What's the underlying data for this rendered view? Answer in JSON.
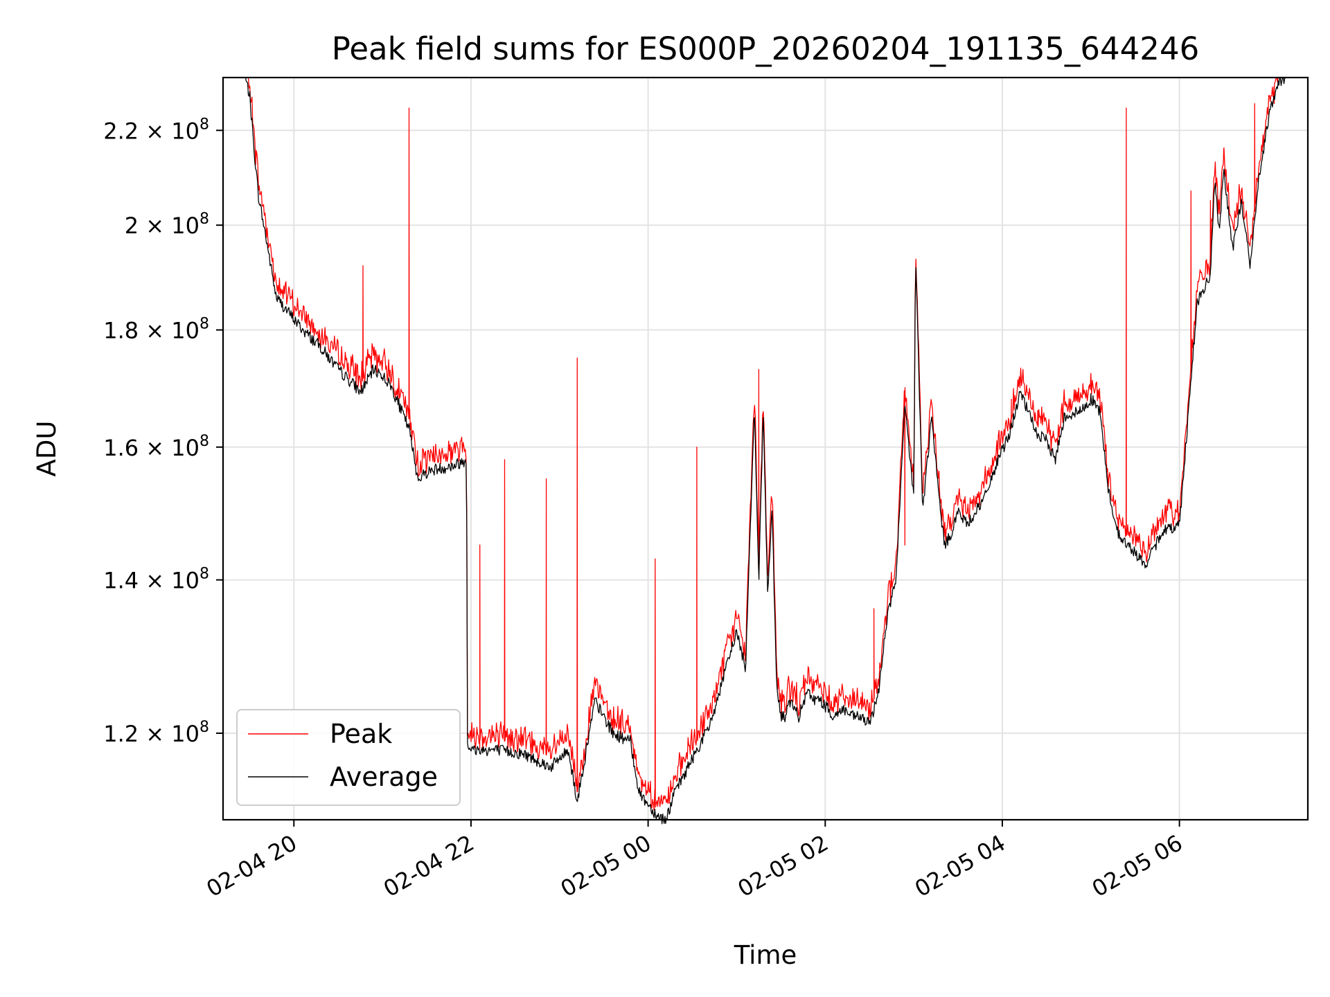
{
  "chart_data": {
    "type": "line",
    "title": "Peak field sums for ES000P_20260204_191135_644246",
    "xlabel": "Time",
    "ylabel": "ADU",
    "yscale": "log",
    "ylim": [
      110000000,
      232000000
    ],
    "xlim_hours": [
      19.2,
      31.45
    ],
    "grid": true,
    "legend_position": "lower-left",
    "x_ticks": [
      {
        "hour": 20,
        "label": "02-04 20"
      },
      {
        "hour": 22,
        "label": "02-04 22"
      },
      {
        "hour": 24,
        "label": "02-05 00"
      },
      {
        "hour": 26,
        "label": "02-05 02"
      },
      {
        "hour": 28,
        "label": "02-05 04"
      },
      {
        "hour": 30,
        "label": "02-05 06"
      }
    ],
    "y_ticks": [
      {
        "value": 120000000,
        "mant": "1.2",
        "exp": "8"
      },
      {
        "value": 140000000,
        "mant": "1.4",
        "exp": "8"
      },
      {
        "value": 160000000,
        "mant": "1.6",
        "exp": "8"
      },
      {
        "value": 180000000,
        "mant": "1.8",
        "exp": "8"
      },
      {
        "value": 200000000,
        "mant": "2",
        "exp": "8"
      },
      {
        "value": 220000000,
        "mant": "2.2",
        "exp": "8"
      }
    ],
    "series": [
      {
        "name": "Peak",
        "color": "#ff0000"
      },
      {
        "name": "Average",
        "color": "#000000"
      }
    ],
    "average_x_hours": [
      19.2,
      19.45,
      19.5,
      19.55,
      19.6,
      19.7,
      19.8,
      19.95,
      20.1,
      20.3,
      20.5,
      20.7,
      20.75,
      20.9,
      21.0,
      21.1,
      21.3,
      21.4,
      21.5,
      21.6,
      21.8,
      21.95,
      21.96,
      22.0,
      22.3,
      22.6,
      22.9,
      23.1,
      23.2,
      23.4,
      23.6,
      23.8,
      23.9,
      24.1,
      24.2,
      24.3,
      24.5,
      24.7,
      25.0,
      25.1,
      25.2,
      25.25,
      25.3,
      25.35,
      25.4,
      25.45,
      25.5,
      25.55,
      25.6,
      25.7,
      25.8,
      25.9,
      25.95,
      26.1,
      26.2,
      26.3,
      26.4,
      26.5,
      26.6,
      26.7,
      26.8,
      26.9,
      27.0,
      27.02,
      27.1,
      27.2,
      27.3,
      27.35,
      27.4,
      27.5,
      27.6,
      27.7,
      27.8,
      27.9,
      28.1,
      28.2,
      28.4,
      28.5,
      28.6,
      28.7,
      28.9,
      29.0,
      29.1,
      29.2,
      29.3,
      29.4,
      29.5,
      29.6,
      29.7,
      29.8,
      30.0,
      30.2,
      30.35,
      30.4,
      30.45,
      30.5,
      30.6,
      30.7,
      30.8,
      30.9,
      31.0,
      31.1,
      31.2,
      31.3,
      31.45
    ],
    "average_values": [
      232000000,
      232000000,
      228000000,
      216000000,
      206000000,
      196000000,
      186000000,
      183000000,
      180000000,
      177000000,
      173000000,
      170000000,
      169000000,
      173000000,
      172000000,
      170000000,
      163000000,
      155000000,
      156000000,
      156500000,
      157000000,
      158000000,
      119000000,
      118000000,
      118000000,
      117500000,
      116000000,
      118000000,
      112000000,
      124000000,
      120000000,
      119000000,
      113000000,
      110500000,
      110000000,
      113000000,
      117000000,
      121000000,
      133000000,
      128000000,
      167000000,
      140000000,
      166000000,
      138000000,
      151000000,
      126000000,
      122000000,
      122000000,
      124000000,
      122000000,
      125000000,
      124000000,
      124000000,
      122000000,
      123000000,
      122000000,
      122000000,
      121000000,
      125000000,
      135000000,
      140000000,
      167000000,
      152000000,
      195000000,
      150000000,
      165000000,
      150000000,
      145000000,
      146000000,
      150000000,
      148000000,
      150000000,
      152000000,
      156000000,
      163000000,
      169000000,
      162000000,
      161000000,
      158000000,
      165000000,
      166000000,
      168000000,
      166000000,
      153000000,
      147000000,
      145000000,
      144000000,
      142000000,
      144000000,
      147000000,
      148000000,
      185000000,
      190000000,
      210000000,
      198000000,
      212000000,
      195000000,
      205000000,
      192000000,
      210000000,
      222000000,
      230000000,
      232000000,
      232000000,
      232000000
    ],
    "peak_spikes": [
      {
        "hour": 20.78,
        "value": 192000000
      },
      {
        "hour": 21.3,
        "value": 225000000
      },
      {
        "hour": 22.1,
        "value": 145000000
      },
      {
        "hour": 22.38,
        "value": 158000000
      },
      {
        "hour": 22.85,
        "value": 155000000
      },
      {
        "hour": 23.2,
        "value": 175000000
      },
      {
        "hour": 24.08,
        "value": 143000000
      },
      {
        "hour": 24.55,
        "value": 160000000
      },
      {
        "hour": 25.25,
        "value": 173000000
      },
      {
        "hour": 26.55,
        "value": 136000000
      },
      {
        "hour": 26.9,
        "value": 145000000
      },
      {
        "hour": 28.1,
        "value": 163000000
      },
      {
        "hour": 28.4,
        "value": 166000000
      },
      {
        "hour": 29.4,
        "value": 225000000
      },
      {
        "hour": 30.13,
        "value": 207000000
      },
      {
        "hour": 30.35,
        "value": 205000000
      },
      {
        "hour": 30.5,
        "value": 216000000
      },
      {
        "hour": 30.85,
        "value": 226000000
      },
      {
        "hour": 31.07,
        "value": 226000000
      }
    ]
  }
}
